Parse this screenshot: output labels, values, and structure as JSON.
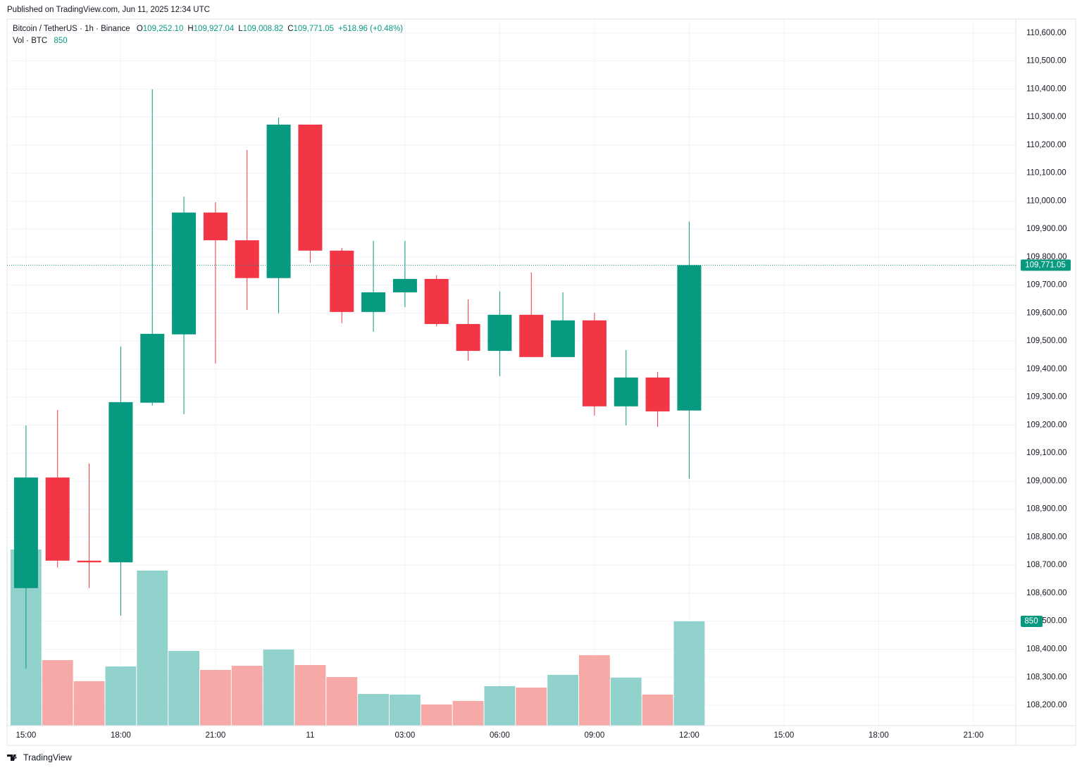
{
  "published": "Published on TradingView.com, Jun 11, 2025 12:34 UTC",
  "footer": "TradingView",
  "chart_data": {
    "type": "candlestick",
    "title": "Bitcoin / TetherUS · 1h · Binance",
    "ohlc": [
      {
        "label": "O",
        "value": "109,252.10"
      },
      {
        "label": "H",
        "value": "109,927.04"
      },
      {
        "label": "L",
        "value": "109,008.82"
      },
      {
        "label": "C",
        "value": "109,771.05"
      }
    ],
    "change": "+518.96 (+0.48%)",
    "volume_title": "Vol · BTC",
    "volume_value": "850",
    "x": [
      0,
      1,
      2,
      3,
      4,
      5,
      6,
      7,
      8,
      9,
      10,
      11,
      12,
      13,
      14,
      15,
      16,
      17,
      18,
      19,
      20,
      21
    ],
    "open": [
      108618,
      109013,
      108716,
      108710,
      109280,
      109524,
      109959,
      109860,
      109725,
      110273,
      109823,
      109604,
      109674,
      109722,
      109561,
      109465,
      109594,
      109443,
      109574,
      109267,
      109370,
      109252.1
    ],
    "high": [
      109199,
      109254,
      109063,
      109481,
      110399,
      110016,
      109996,
      110182,
      110298,
      110273,
      109833,
      109858,
      109858,
      109735,
      109649,
      109677,
      109745,
      109674,
      109601,
      109468,
      109390,
      109927.04
    ],
    "low": [
      108331,
      108691,
      108618,
      108520,
      109270,
      109239,
      109420,
      109611,
      109599,
      109780,
      109564,
      109533,
      109621,
      109553,
      109430,
      109375,
      109443,
      109443,
      109234,
      109199,
      109194,
      109008.82
    ],
    "close": [
      109013,
      108716,
      108710,
      109282,
      109526,
      109959,
      109860,
      109725,
      110273,
      109823,
      109604,
      109674,
      109722,
      109561,
      109465,
      109594,
      109443,
      109574,
      109267,
      109370,
      109249,
      109771.05
    ],
    "volume": [
      1436,
      534,
      362,
      482,
      1264,
      609,
      454,
      488,
      620,
      494,
      396,
      258,
      253,
      172,
      201,
      322,
      310,
      414,
      574,
      391,
      253,
      850
    ],
    "up_color": "#089981",
    "down_color": "#f23645",
    "vol_up_color": "#92d2cc",
    "vol_down_color": "#f7a9a7",
    "xlim": [
      -0.6,
      31.34
    ],
    "xticks": [
      {
        "value": 0,
        "label": "15:00"
      },
      {
        "value": 3,
        "label": "18:00"
      },
      {
        "value": 6,
        "label": "21:00"
      },
      {
        "value": 9,
        "label": "11"
      },
      {
        "value": 12,
        "label": "03:00"
      },
      {
        "value": 15,
        "label": "06:00"
      },
      {
        "value": 18,
        "label": "09:00"
      },
      {
        "value": 21,
        "label": "12:00"
      },
      {
        "value": 24,
        "label": "15:00"
      },
      {
        "value": 27,
        "label": "18:00"
      },
      {
        "value": 30,
        "label": "21:00"
      }
    ],
    "ylim": [
      108127,
      110650
    ],
    "yticks": [
      {
        "value": 108200,
        "label": "108,200.00"
      },
      {
        "value": 108300,
        "label": "108,300.00"
      },
      {
        "value": 108400,
        "label": "108,400.00"
      },
      {
        "value": 108500,
        "label": "108,500.00"
      },
      {
        "value": 108600,
        "label": "108,600.00"
      },
      {
        "value": 108700,
        "label": "108,700.00"
      },
      {
        "value": 108800,
        "label": "108,800.00"
      },
      {
        "value": 108900,
        "label": "108,900.00"
      },
      {
        "value": 109000,
        "label": "109,000.00"
      },
      {
        "value": 109100,
        "label": "109,100.00"
      },
      {
        "value": 109200,
        "label": "109,200.00"
      },
      {
        "value": 109300,
        "label": "109,300.00"
      },
      {
        "value": 109400,
        "label": "109,400.00"
      },
      {
        "value": 109500,
        "label": "109,500.00"
      },
      {
        "value": 109600,
        "label": "109,600.00"
      },
      {
        "value": 109700,
        "label": "109,700.00"
      },
      {
        "value": 109800,
        "label": "109,800.00"
      },
      {
        "value": 109900,
        "label": "109,900.00"
      },
      {
        "value": 110000,
        "label": "110,000.00"
      },
      {
        "value": 110100,
        "label": "110,100.00"
      },
      {
        "value": 110200,
        "label": "110,200.00"
      },
      {
        "value": 110300,
        "label": "110,300.00"
      },
      {
        "value": 110400,
        "label": "110,400.00"
      },
      {
        "value": 110500,
        "label": "110,500.00"
      },
      {
        "value": 110600,
        "label": "110,600.00"
      }
    ],
    "y2lim": [
      0,
      5760
    ],
    "last_price": {
      "value": 109771.05,
      "label": "109,771.05"
    },
    "last_volume": {
      "value": 850,
      "label": "850"
    },
    "grid": true
  }
}
